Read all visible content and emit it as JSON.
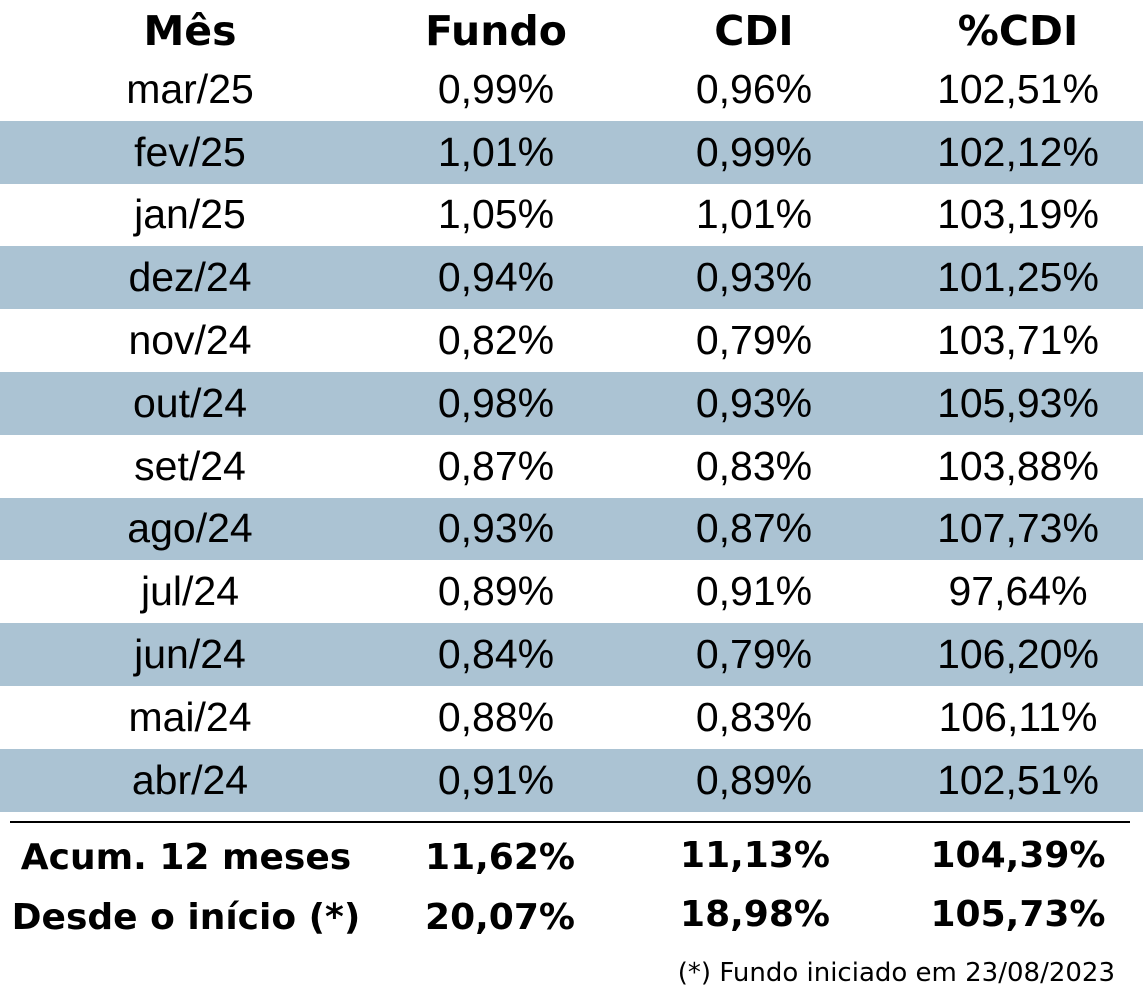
{
  "table": {
    "headers": {
      "month": "Mês",
      "fund": "Fundo",
      "cdi": "CDI",
      "pct_cdi": "%CDI"
    },
    "rows": [
      {
        "month": "mar/25",
        "fund": "0,99%",
        "cdi": "0,96%",
        "pct_cdi": "102,51%"
      },
      {
        "month": "fev/25",
        "fund": "1,01%",
        "cdi": "0,99%",
        "pct_cdi": "102,12%"
      },
      {
        "month": "jan/25",
        "fund": "1,05%",
        "cdi": "1,01%",
        "pct_cdi": "103,19%"
      },
      {
        "month": "dez/24",
        "fund": "0,94%",
        "cdi": "0,93%",
        "pct_cdi": "101,25%"
      },
      {
        "month": "nov/24",
        "fund": "0,82%",
        "cdi": "0,79%",
        "pct_cdi": "103,71%"
      },
      {
        "month": "out/24",
        "fund": "0,98%",
        "cdi": "0,93%",
        "pct_cdi": "105,93%"
      },
      {
        "month": "set/24",
        "fund": "0,87%",
        "cdi": "0,83%",
        "pct_cdi": "103,88%"
      },
      {
        "month": "ago/24",
        "fund": "0,93%",
        "cdi": "0,87%",
        "pct_cdi": "107,73%"
      },
      {
        "month": "jul/24",
        "fund": "0,89%",
        "cdi": "0,91%",
        "pct_cdi": "97,64%"
      },
      {
        "month": "jun/24",
        "fund": "0,84%",
        "cdi": "0,79%",
        "pct_cdi": "106,20%"
      },
      {
        "month": "mai/24",
        "fund": "0,88%",
        "cdi": "0,83%",
        "pct_cdi": "106,11%"
      },
      {
        "month": "abr/24",
        "fund": "0,91%",
        "cdi": "0,89%",
        "pct_cdi": "102,51%"
      }
    ],
    "summary": [
      {
        "label": "Acum. 12 meses",
        "fund": "11,62%",
        "cdi": "11,13%",
        "pct_cdi": "104,39%"
      },
      {
        "label": "Desde o início (*)",
        "fund": "20,07%",
        "cdi": "18,98%",
        "pct_cdi": "105,73%"
      }
    ],
    "footnote": "(*) Fundo iniciado em 23/08/2023",
    "colors": {
      "shaded_row": "#abc3d3",
      "text": "#000000"
    }
  }
}
